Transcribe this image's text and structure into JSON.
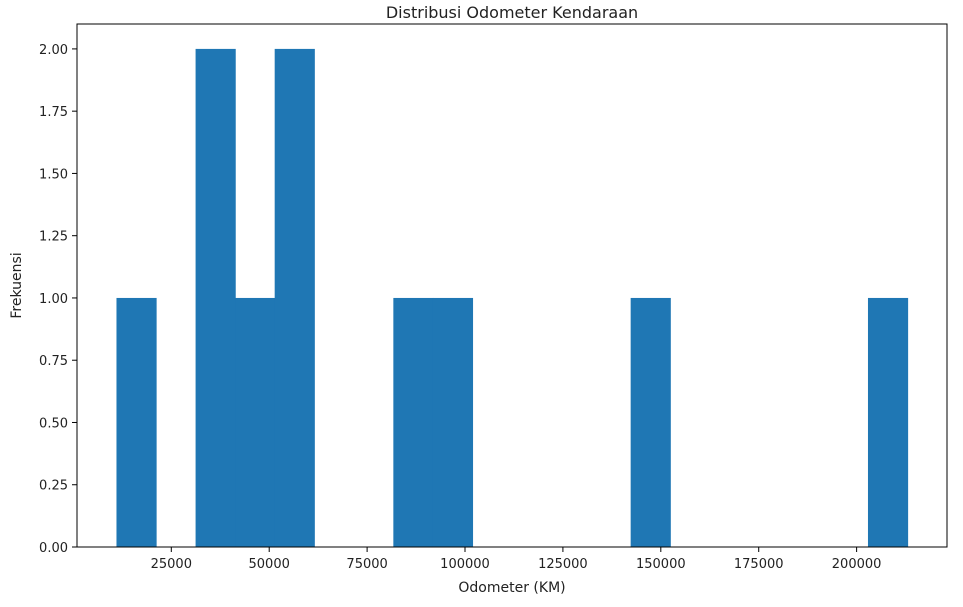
{
  "chart_data": {
    "type": "bar",
    "subtype": "histogram",
    "title": "Distribusi Odometer Kendaraan",
    "xlabel": "Odometer (KM)",
    "ylabel": "Frekuensi",
    "bar_color": "#1f77b4",
    "bins": [
      {
        "start": 11000,
        "end": 21100,
        "count": 1
      },
      {
        "start": 21100,
        "end": 31200,
        "count": 0
      },
      {
        "start": 31200,
        "end": 41300,
        "count": 2
      },
      {
        "start": 41300,
        "end": 51400,
        "count": 1
      },
      {
        "start": 51400,
        "end": 61500,
        "count": 2
      },
      {
        "start": 61500,
        "end": 71600,
        "count": 0
      },
      {
        "start": 71600,
        "end": 81700,
        "count": 0
      },
      {
        "start": 81700,
        "end": 91800,
        "count": 1
      },
      {
        "start": 91800,
        "end": 101900,
        "count": 1
      },
      {
        "start": 101900,
        "end": 112000,
        "count": 0
      },
      {
        "start": 112000,
        "end": 122100,
        "count": 0
      },
      {
        "start": 122100,
        "end": 132200,
        "count": 0
      },
      {
        "start": 132200,
        "end": 142300,
        "count": 0
      },
      {
        "start": 142300,
        "end": 152400,
        "count": 1
      },
      {
        "start": 152400,
        "end": 162500,
        "count": 0
      },
      {
        "start": 162500,
        "end": 172600,
        "count": 0
      },
      {
        "start": 172600,
        "end": 182700,
        "count": 0
      },
      {
        "start": 182700,
        "end": 192800,
        "count": 0
      },
      {
        "start": 192800,
        "end": 202900,
        "count": 0
      },
      {
        "start": 202900,
        "end": 213000,
        "count": 1
      }
    ],
    "xlim": [
      920,
      223080
    ],
    "ylim": [
      0,
      2.1
    ],
    "xticks": [
      25000,
      50000,
      75000,
      100000,
      125000,
      150000,
      175000,
      200000
    ],
    "xtick_labels": [
      "25000",
      "50000",
      "75000",
      "100000",
      "125000",
      "150000",
      "175000",
      "200000"
    ],
    "yticks": [
      0,
      0.25,
      0.5,
      0.75,
      1.0,
      1.25,
      1.5,
      1.75,
      2.0
    ],
    "ytick_labels": [
      "0.00",
      "0.25",
      "0.50",
      "0.75",
      "1.00",
      "1.25",
      "1.50",
      "1.75",
      "2.00"
    ],
    "grid": false,
    "legend": false
  }
}
